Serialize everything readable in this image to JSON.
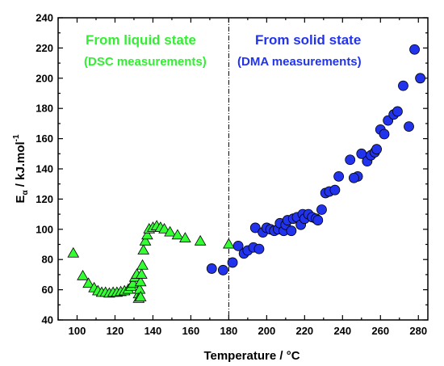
{
  "chart_data": {
    "type": "scatter",
    "xlabel": "Temperature / °C",
    "ylabel": {
      "main": "E",
      "sub": "α",
      "rest": " / kJ.mol",
      "sup": "-1"
    },
    "xlim": [
      90,
      285
    ],
    "ylim": [
      40,
      240
    ],
    "x_ticks": [
      100,
      120,
      140,
      160,
      180,
      200,
      220,
      240,
      260,
      280
    ],
    "y_ticks": [
      40,
      60,
      80,
      100,
      120,
      140,
      160,
      180,
      200,
      220,
      240
    ],
    "grid": false,
    "divider_x": 180,
    "annotations": {
      "liquid_title": "From liquid state",
      "liquid_sub": "(DSC measurements)",
      "solid_title": "From solid state",
      "solid_sub": "(DMA measurements)"
    },
    "series": [
      {
        "marker": "triangle",
        "color": "#33ff33",
        "points": [
          [
            98,
            84
          ],
          [
            103,
            69
          ],
          [
            106,
            64
          ],
          [
            109,
            61
          ],
          [
            111,
            59
          ],
          [
            113,
            58
          ],
          [
            115,
            58
          ],
          [
            117,
            57.5
          ],
          [
            119,
            58
          ],
          [
            121,
            58
          ],
          [
            123,
            58.5
          ],
          [
            125,
            59
          ],
          [
            127,
            60
          ],
          [
            128.5,
            62
          ],
          [
            129.5,
            64
          ],
          [
            130.5,
            68
          ],
          [
            131.5,
            70
          ],
          [
            132.5,
            57
          ],
          [
            133,
            60
          ],
          [
            133.5,
            65
          ],
          [
            134,
            70
          ],
          [
            134.5,
            76
          ],
          [
            135,
            86
          ],
          [
            136,
            92
          ],
          [
            137,
            96
          ],
          [
            138,
            100
          ],
          [
            140,
            101
          ],
          [
            142,
            102
          ],
          [
            144,
            101
          ],
          [
            146,
            100
          ],
          [
            149,
            98
          ],
          [
            153,
            96
          ],
          [
            157,
            94
          ],
          [
            165,
            92
          ],
          [
            180,
            90
          ],
          [
            132.5,
            54
          ],
          [
            133.5,
            55
          ]
        ]
      },
      {
        "marker": "circle",
        "color": "#2233ee",
        "points": [
          [
            171,
            74
          ],
          [
            177,
            73
          ],
          [
            182,
            78
          ],
          [
            185,
            89
          ],
          [
            188,
            84
          ],
          [
            190,
            86
          ],
          [
            193,
            88
          ],
          [
            194,
            101
          ],
          [
            196,
            87
          ],
          [
            198,
            98
          ],
          [
            200,
            101
          ],
          [
            202,
            100
          ],
          [
            204,
            99
          ],
          [
            206,
            100
          ],
          [
            207,
            104
          ],
          [
            209,
            99
          ],
          [
            210,
            103
          ],
          [
            211,
            106
          ],
          [
            213,
            99
          ],
          [
            214,
            107
          ],
          [
            216,
            108
          ],
          [
            218,
            103
          ],
          [
            219,
            110
          ],
          [
            220,
            107
          ],
          [
            222,
            110
          ],
          [
            224,
            108
          ],
          [
            226,
            107
          ],
          [
            227,
            106
          ],
          [
            229,
            113
          ],
          [
            231,
            124
          ],
          [
            233,
            125
          ],
          [
            236,
            126
          ],
          [
            238,
            135
          ],
          [
            244,
            146
          ],
          [
            248,
            135
          ],
          [
            250,
            150
          ],
          [
            253,
            145
          ],
          [
            255,
            149
          ],
          [
            257,
            151
          ],
          [
            258,
            153
          ],
          [
            260,
            166
          ],
          [
            262,
            163
          ],
          [
            264,
            172
          ],
          [
            267,
            176
          ],
          [
            269,
            178
          ],
          [
            272,
            195
          ],
          [
            275,
            168
          ],
          [
            278,
            219
          ],
          [
            281,
            200
          ],
          [
            246,
            134
          ]
        ]
      }
    ]
  }
}
